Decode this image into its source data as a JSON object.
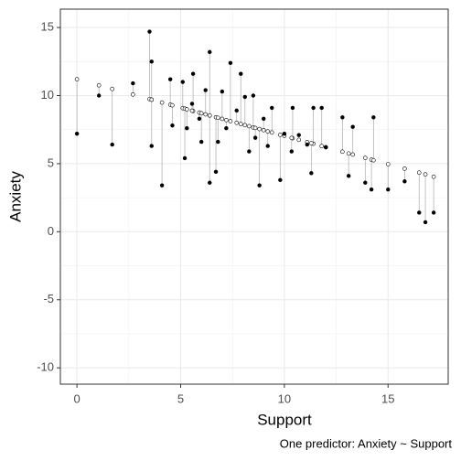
{
  "chart_data": {
    "type": "scatter",
    "xlabel": "Support",
    "ylabel": "Anxiety",
    "caption": "One predictor: Anxiety ~ Support",
    "x": [
      0,
      1.06,
      1.7,
      2.7,
      3.5,
      3.6,
      3.6,
      4.1,
      4.5,
      4.6,
      5.1,
      5.2,
      5.3,
      5.6,
      5.55,
      5.9,
      6.2,
      6.0,
      6.4,
      6.4,
      6.7,
      6.8,
      7.0,
      7.2,
      7.4,
      7.7,
      7.9,
      8.1,
      8.3,
      8.5,
      8.6,
      8.8,
      9.0,
      9.2,
      9.4,
      9.8,
      10.0,
      10.4,
      10.35,
      10.7,
      11.1,
      11.4,
      11.3,
      11.8,
      12.0,
      12.8,
      13.1,
      13.3,
      13.9,
      14.2,
      14.3,
      15.0,
      15.8,
      16.5,
      16.8,
      17.2
    ],
    "y": [
      7.2,
      10.0,
      6.4,
      10.9,
      14.7,
      12.5,
      6.3,
      3.4,
      11.2,
      7.8,
      11.0,
      5.4,
      7.6,
      11.6,
      9.4,
      8.3,
      10.4,
      6.6,
      13.2,
      3.6,
      4.4,
      6.6,
      10.3,
      7.6,
      12.4,
      8.9,
      11.6,
      9.9,
      5.9,
      10.0,
      6.9,
      3.4,
      8.3,
      6.3,
      9.1,
      3.8,
      7.2,
      9.1,
      5.9,
      7.1,
      6.4,
      9.1,
      4.3,
      9.1,
      6.2,
      8.4,
      4.1,
      7.7,
      3.6,
      3.1,
      8.4,
      3.1,
      3.7,
      1.4,
      0.7,
      1.4
    ],
    "fitted": [
      11.2,
      10.76,
      10.49,
      10.08,
      9.74,
      9.7,
      9.7,
      9.49,
      9.33,
      9.29,
      9.08,
      9.04,
      8.99,
      8.87,
      8.89,
      8.75,
      8.62,
      8.7,
      8.54,
      8.54,
      8.41,
      8.37,
      8.29,
      8.2,
      8.12,
      8.0,
      7.91,
      7.83,
      7.75,
      7.66,
      7.62,
      7.54,
      7.46,
      7.37,
      7.29,
      7.12,
      7.04,
      6.87,
      6.89,
      6.75,
      6.58,
      6.46,
      6.5,
      6.29,
      6.21,
      5.88,
      5.75,
      5.67,
      5.42,
      5.29,
      5.25,
      4.96,
      4.63,
      4.34,
      4.21,
      4.04
    ],
    "point_color": "#000000",
    "fitted_fill": "#ffffff",
    "segment_color": "#b3b3b3",
    "xlim": [
      -0.8,
      17.9
    ],
    "ylim": [
      -11.2,
      16.35
    ],
    "xticks": [
      0,
      5,
      10,
      15
    ],
    "yticks": [
      -10,
      -5,
      0,
      5,
      10,
      15
    ],
    "grid": true
  }
}
